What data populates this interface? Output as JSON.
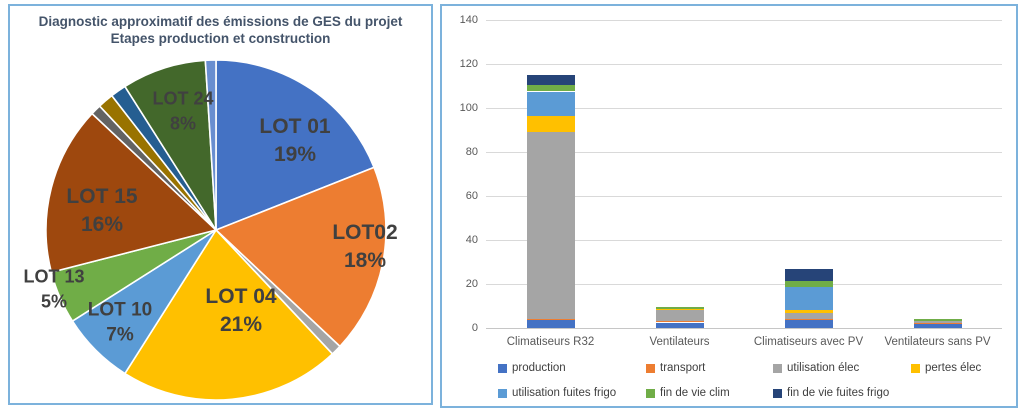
{
  "chart_data": [
    {
      "type": "pie",
      "title_lines": [
        "Diagnostic approximatif des émissions de GES du projet",
        "Etapes production et construction"
      ],
      "title_color": "#44546A",
      "label_color": "#404040",
      "slices": [
        {
          "label": "LOT 01",
          "value": 19,
          "pct_label": "19%",
          "color": "#4472C4"
        },
        {
          "label": "LOT02",
          "value": 18,
          "pct_label": "18%",
          "color": "#ED7D31"
        },
        {
          "label": "",
          "value": 1,
          "pct_label": "",
          "color": "#A5A5A5"
        },
        {
          "label": "LOT 04",
          "value": 21,
          "pct_label": "21%",
          "color": "#FFC000"
        },
        {
          "label": "LOT 10",
          "value": 7,
          "pct_label": "7%",
          "color": "#5B9BD5"
        },
        {
          "label": "LOT 13",
          "value": 5,
          "pct_label": "5%",
          "color": "#70AD47"
        },
        {
          "label": "LOT 15",
          "value": 16,
          "pct_label": "16%",
          "color": "#9E480E"
        },
        {
          "label": "",
          "value": 1,
          "pct_label": "",
          "color": "#636363"
        },
        {
          "label": "",
          "value": 1.5,
          "pct_label": "",
          "color": "#997300"
        },
        {
          "label": "",
          "value": 1.5,
          "pct_label": "",
          "color": "#255E91"
        },
        {
          "label": "LOT 24",
          "value": 8,
          "pct_label": "8%",
          "color": "#43682B"
        },
        {
          "label": "",
          "value": 1,
          "pct_label": "",
          "color": "#698ED0"
        }
      ]
    },
    {
      "type": "bar",
      "stacked": true,
      "categories": [
        "Climatiseurs R32",
        "Ventilateurs",
        "Climatiseurs avec PV",
        "Ventilateurs sans PV"
      ],
      "series": [
        {
          "name": "production",
          "color": "#4472C4",
          "values": [
            3.5,
            2.5,
            3.5,
            2
          ]
        },
        {
          "name": "transport",
          "color": "#ED7D31",
          "values": [
            0.5,
            0.5,
            0.5,
            0.4
          ]
        },
        {
          "name": "utilisation élec",
          "color": "#A5A5A5",
          "values": [
            85,
            5,
            3,
            0.6
          ]
        },
        {
          "name": "pertes élec",
          "color": "#FFC000",
          "values": [
            7.5,
            0.8,
            1,
            0
          ]
        },
        {
          "name": "utilisation fuites frigo",
          "color": "#5B9BD5",
          "values": [
            11,
            0,
            10.5,
            0
          ]
        },
        {
          "name": "fin de vie clim",
          "color": "#70AD47",
          "values": [
            3,
            0.8,
            3,
            1
          ]
        },
        {
          "name": "fin de vie fuites frigo",
          "color": "#264478",
          "values": [
            4.5,
            0,
            5.5,
            0
          ]
        }
      ],
      "ylim": [
        0,
        140
      ],
      "yticks": [
        0,
        20,
        40,
        60,
        80,
        100,
        120,
        140
      ],
      "grid": true,
      "legend_position": "bottom",
      "axis_label_color": "#595959",
      "legend_text_color": "#404040",
      "gridline_color": "#D9D9D9",
      "panel_border_color": "#7CB2DC"
    }
  ]
}
